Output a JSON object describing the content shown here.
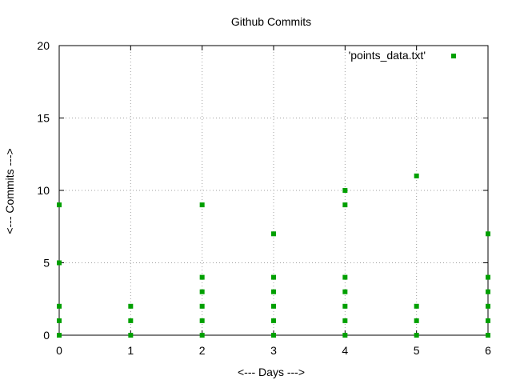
{
  "chart_data": {
    "type": "scatter",
    "title": "Github Commits",
    "xlabel": "<--- Days --->",
    "ylabel": "<--- Commits --->",
    "xlim": [
      0,
      6
    ],
    "ylim": [
      0,
      20
    ],
    "xticks": [
      "0",
      "1",
      "2",
      "3",
      "4",
      "5",
      "6"
    ],
    "yticks": [
      "0",
      "5",
      "10",
      "15",
      "20"
    ],
    "grid": true,
    "legend_position": "top-right",
    "series": [
      {
        "name": "'points_data.txt'",
        "color": "#00a000",
        "marker": "filled-square",
        "points": [
          {
            "x": 0,
            "y": 0
          },
          {
            "x": 0,
            "y": 1
          },
          {
            "x": 0,
            "y": 2
          },
          {
            "x": 0,
            "y": 5
          },
          {
            "x": 0,
            "y": 9
          },
          {
            "x": 1,
            "y": 0
          },
          {
            "x": 1,
            "y": 1
          },
          {
            "x": 1,
            "y": 2
          },
          {
            "x": 2,
            "y": 0
          },
          {
            "x": 2,
            "y": 1
          },
          {
            "x": 2,
            "y": 2
          },
          {
            "x": 2,
            "y": 3
          },
          {
            "x": 2,
            "y": 4
          },
          {
            "x": 2,
            "y": 9
          },
          {
            "x": 3,
            "y": 0
          },
          {
            "x": 3,
            "y": 1
          },
          {
            "x": 3,
            "y": 2
          },
          {
            "x": 3,
            "y": 3
          },
          {
            "x": 3,
            "y": 4
          },
          {
            "x": 3,
            "y": 7
          },
          {
            "x": 4,
            "y": 0
          },
          {
            "x": 4,
            "y": 1
          },
          {
            "x": 4,
            "y": 2
          },
          {
            "x": 4,
            "y": 3
          },
          {
            "x": 4,
            "y": 4
          },
          {
            "x": 4,
            "y": 9
          },
          {
            "x": 4,
            "y": 10
          },
          {
            "x": 5,
            "y": 0
          },
          {
            "x": 5,
            "y": 1
          },
          {
            "x": 5,
            "y": 2
          },
          {
            "x": 5,
            "y": 11
          },
          {
            "x": 6,
            "y": 0
          },
          {
            "x": 6,
            "y": 1
          },
          {
            "x": 6,
            "y": 2
          },
          {
            "x": 6,
            "y": 3
          },
          {
            "x": 6,
            "y": 4
          },
          {
            "x": 6,
            "y": 7
          }
        ]
      }
    ]
  }
}
